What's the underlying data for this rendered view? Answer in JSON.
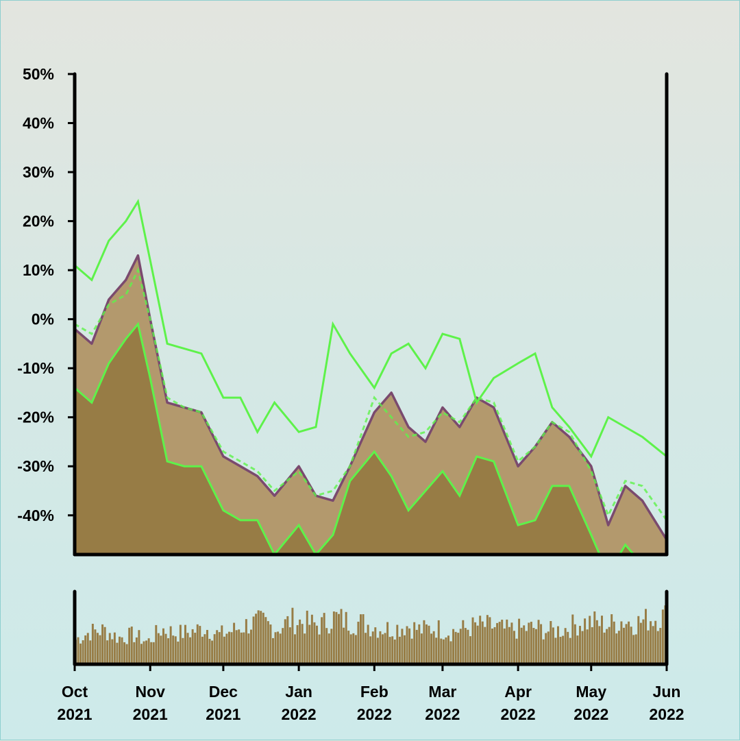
{
  "chart_data": {
    "type": "area",
    "title": "",
    "xlabel": "",
    "ylabel": "",
    "x_range": [
      "2021-10-01",
      "2022-06-01"
    ],
    "ylim": [
      -0.48,
      0.5
    ],
    "y_ticks": [
      0.5,
      0.4,
      0.3,
      0.2,
      0.1,
      0.0,
      -0.1,
      -0.2,
      -0.3,
      -0.4
    ],
    "y_tick_labels": [
      "50%",
      "40%",
      "30%",
      "20%",
      "10%",
      "0%",
      "-10%",
      "-20%",
      "-30%",
      "-40%"
    ],
    "x_ticks": [
      {
        "date": "2021-10-01",
        "label": [
          "Oct",
          "2021"
        ]
      },
      {
        "date": "2021-11-01",
        "label": [
          "Nov",
          "2021"
        ]
      },
      {
        "date": "2021-12-01",
        "label": [
          "Dec",
          "2021"
        ]
      },
      {
        "date": "2022-01-01",
        "label": [
          "Jan",
          "2022"
        ]
      },
      {
        "date": "2022-02-01",
        "label": [
          "Feb",
          "2022"
        ]
      },
      {
        "date": "2022-03-01",
        "label": [
          "Mar",
          "2022"
        ]
      },
      {
        "date": "2022-04-01",
        "label": [
          "Apr",
          "2022"
        ]
      },
      {
        "date": "2022-05-01",
        "label": [
          "May",
          "2022"
        ]
      },
      {
        "date": "2022-06-01",
        "label": [
          "Jun",
          "2022"
        ]
      }
    ],
    "colors": {
      "price_line": "#7a4a6e",
      "price_fill": "#b3996d",
      "lower_fill": "#977c45",
      "band": "#5ef24a",
      "volume": "#977c45",
      "axis": "#000000"
    },
    "series": [
      {
        "id": "price",
        "x": [
          "2021-10-01",
          "2021-10-08",
          "2021-10-15",
          "2021-10-22",
          "2021-10-27",
          "2021-11-01",
          "2021-11-08",
          "2021-11-15",
          "2021-11-22",
          "2021-12-01",
          "2021-12-08",
          "2021-12-15",
          "2021-12-22",
          "2022-01-01",
          "2022-01-08",
          "2022-01-15",
          "2022-01-22",
          "2022-02-01",
          "2022-02-08",
          "2022-02-15",
          "2022-02-22",
          "2022-03-01",
          "2022-03-08",
          "2022-03-15",
          "2022-03-22",
          "2022-04-01",
          "2022-04-08",
          "2022-04-15",
          "2022-04-22",
          "2022-05-01",
          "2022-05-08",
          "2022-05-15",
          "2022-05-22",
          "2022-06-01"
        ],
        "values": [
          -0.02,
          -0.05,
          0.04,
          0.08,
          0.13,
          0.0,
          -0.17,
          -0.18,
          -0.19,
          -0.28,
          -0.3,
          -0.32,
          -0.36,
          -0.3,
          -0.36,
          -0.37,
          -0.3,
          -0.19,
          -0.15,
          -0.22,
          -0.25,
          -0.18,
          -0.22,
          -0.16,
          -0.18,
          -0.3,
          -0.26,
          -0.21,
          -0.24,
          -0.3,
          -0.42,
          -0.34,
          -0.37,
          -0.45
        ]
      },
      {
        "id": "band_middle",
        "x": [
          "2021-10-01",
          "2021-10-08",
          "2021-10-15",
          "2021-10-22",
          "2021-10-27",
          "2021-11-01",
          "2021-11-08",
          "2021-11-15",
          "2021-11-22",
          "2021-12-01",
          "2021-12-08",
          "2021-12-15",
          "2021-12-22",
          "2022-01-01",
          "2022-01-08",
          "2022-01-15",
          "2022-01-22",
          "2022-02-01",
          "2022-02-08",
          "2022-02-15",
          "2022-02-22",
          "2022-03-01",
          "2022-03-08",
          "2022-03-15",
          "2022-03-22",
          "2022-04-01",
          "2022-04-08",
          "2022-04-15",
          "2022-04-22",
          "2022-05-01",
          "2022-05-08",
          "2022-05-15",
          "2022-05-22",
          "2022-06-01"
        ],
        "values": [
          -0.01,
          -0.03,
          0.03,
          0.05,
          0.1,
          0.0,
          -0.16,
          -0.18,
          -0.19,
          -0.27,
          -0.29,
          -0.31,
          -0.35,
          -0.31,
          -0.36,
          -0.35,
          -0.3,
          -0.16,
          -0.2,
          -0.24,
          -0.23,
          -0.19,
          -0.21,
          -0.16,
          -0.17,
          -0.29,
          -0.26,
          -0.21,
          -0.23,
          -0.31,
          -0.4,
          -0.33,
          -0.34,
          -0.41
        ]
      },
      {
        "id": "band_upper",
        "x": [
          "2021-10-01",
          "2021-10-08",
          "2021-10-15",
          "2021-10-22",
          "2021-10-27",
          "2021-11-01",
          "2021-11-08",
          "2021-11-15",
          "2021-11-22",
          "2021-12-01",
          "2021-12-08",
          "2021-12-15",
          "2021-12-22",
          "2022-01-01",
          "2022-01-08",
          "2022-01-15",
          "2022-01-22",
          "2022-02-01",
          "2022-02-08",
          "2022-02-15",
          "2022-02-22",
          "2022-03-01",
          "2022-03-08",
          "2022-03-15",
          "2022-03-22",
          "2022-04-01",
          "2022-04-08",
          "2022-04-15",
          "2022-04-22",
          "2022-05-01",
          "2022-05-08",
          "2022-05-15",
          "2022-05-22",
          "2022-06-01"
        ],
        "values": [
          0.11,
          0.08,
          0.16,
          0.2,
          0.24,
          0.12,
          -0.05,
          -0.06,
          -0.07,
          -0.16,
          -0.16,
          -0.23,
          -0.17,
          -0.23,
          -0.22,
          -0.01,
          -0.07,
          -0.14,
          -0.07,
          -0.05,
          -0.1,
          -0.03,
          -0.04,
          -0.17,
          -0.12,
          -0.09,
          -0.07,
          -0.18,
          -0.22,
          -0.28,
          -0.2,
          -0.22,
          -0.24,
          -0.28
        ]
      },
      {
        "id": "band_lower",
        "x": [
          "2021-10-01",
          "2021-10-08",
          "2021-10-15",
          "2021-10-22",
          "2021-10-27",
          "2021-11-01",
          "2021-11-08",
          "2021-11-15",
          "2021-11-22",
          "2021-12-01",
          "2021-12-08",
          "2021-12-15",
          "2021-12-22",
          "2022-01-01",
          "2022-01-08",
          "2022-01-15",
          "2022-01-22",
          "2022-02-01",
          "2022-02-08",
          "2022-02-15",
          "2022-02-22",
          "2022-03-01",
          "2022-03-08",
          "2022-03-15",
          "2022-03-22",
          "2022-04-01",
          "2022-04-08",
          "2022-04-15",
          "2022-04-22",
          "2022-05-01",
          "2022-05-08",
          "2022-05-15",
          "2022-05-22",
          "2022-06-01"
        ],
        "values": [
          -0.14,
          -0.17,
          -0.09,
          -0.04,
          -0.01,
          -0.12,
          -0.29,
          -0.3,
          -0.3,
          -0.39,
          -0.41,
          -0.41,
          -0.48,
          -0.42,
          -0.48,
          -0.44,
          -0.33,
          -0.27,
          -0.32,
          -0.39,
          -0.35,
          -0.31,
          -0.36,
          -0.28,
          -0.29,
          -0.42,
          -0.41,
          -0.34,
          -0.34,
          -0.44,
          -0.52,
          -0.46,
          -0.5,
          -0.55
        ]
      }
    ],
    "volume": {
      "type": "bar",
      "x_range": [
        "2021-10-01",
        "2022-06-01"
      ],
      "count": 243,
      "relative_levels": [
        0.42,
        0.55,
        0.58,
        0.45,
        0.5,
        0.38,
        0.6,
        0.52,
        0.55,
        0.62,
        0.5,
        0.58,
        0.68,
        0.72,
        0.6,
        0.75,
        0.7,
        0.66,
        0.8,
        0.72,
        0.7,
        0.62,
        0.6,
        0.66,
        0.58,
        0.62,
        0.55,
        0.6,
        0.66,
        0.64,
        0.58,
        0.6,
        0.62,
        0.56,
        0.6,
        0.7,
        0.72,
        0.66,
        0.74,
        0.7,
        0.78,
        0.82
      ]
    }
  }
}
